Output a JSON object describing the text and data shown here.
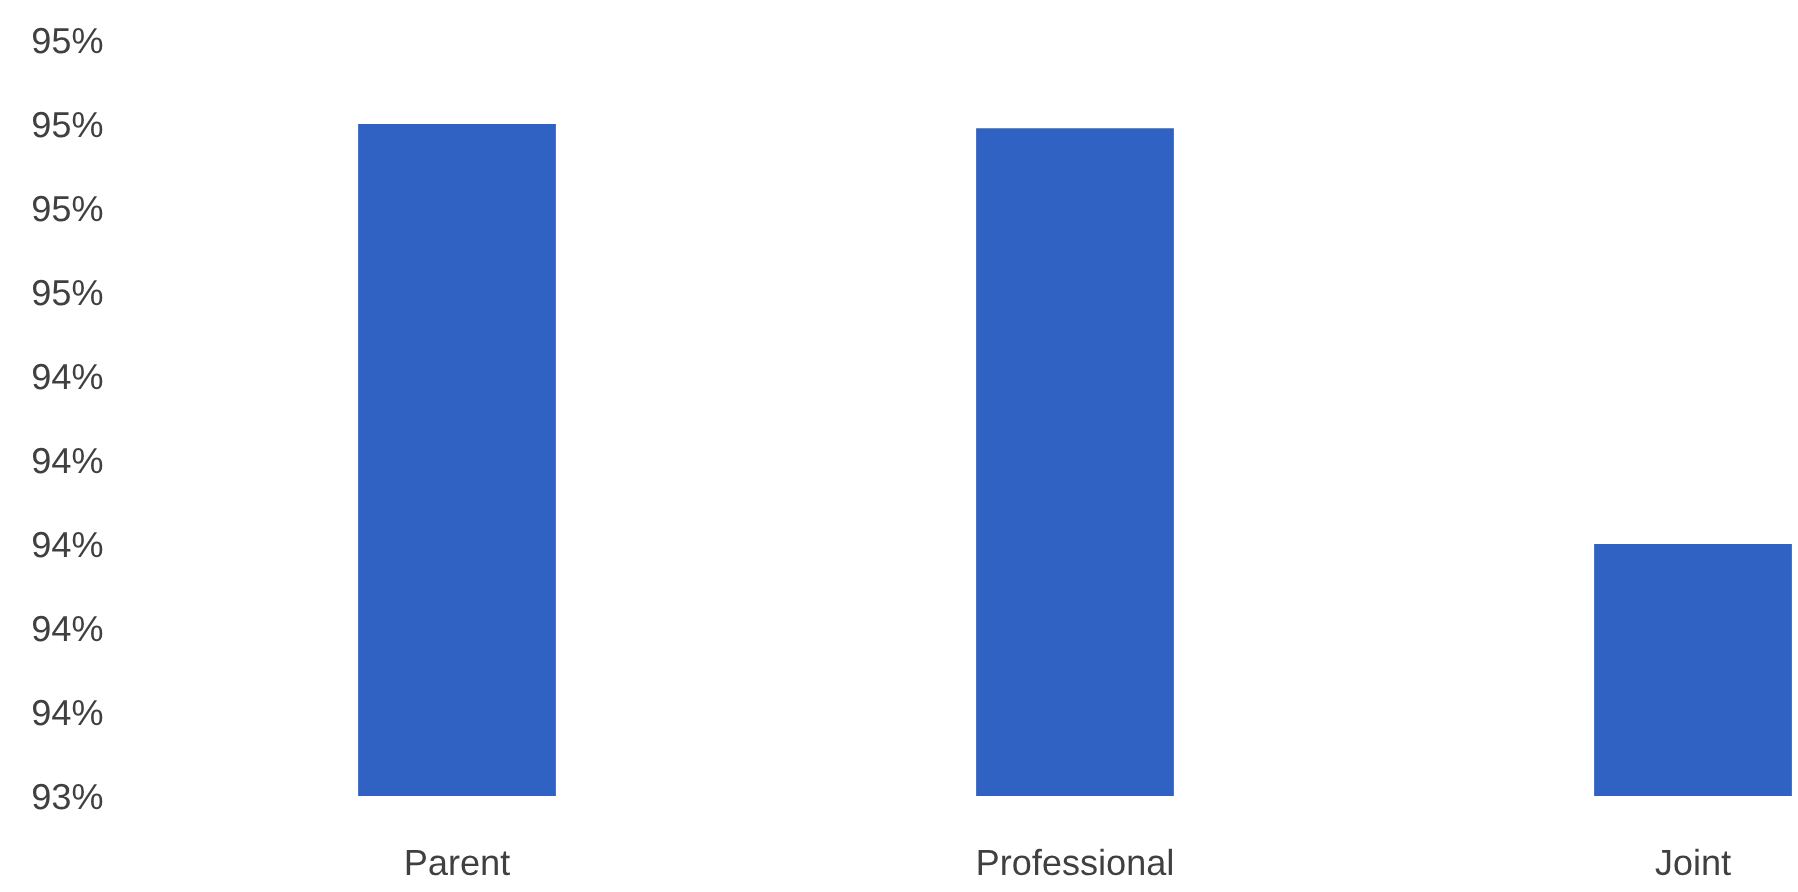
{
  "chart_data": {
    "type": "bar",
    "categories": [
      "Parent",
      "Professional",
      "Joint"
    ],
    "values": [
      95.0,
      94.99,
      94.0
    ],
    "color": "#2f62c2",
    "ylim": [
      93.4,
      95.2
    ],
    "yticks": [
      {
        "value": 93.4,
        "label": "93%"
      },
      {
        "value": 93.6,
        "label": "94%"
      },
      {
        "value": 93.8,
        "label": "94%"
      },
      {
        "value": 94.0,
        "label": "94%"
      },
      {
        "value": 94.2,
        "label": "94%"
      },
      {
        "value": 94.4,
        "label": "94%"
      },
      {
        "value": 94.6,
        "label": "95%"
      },
      {
        "value": 94.8,
        "label": "95%"
      },
      {
        "value": 95.0,
        "label": "95%"
      },
      {
        "value": 95.2,
        "label": "95%"
      }
    ]
  }
}
